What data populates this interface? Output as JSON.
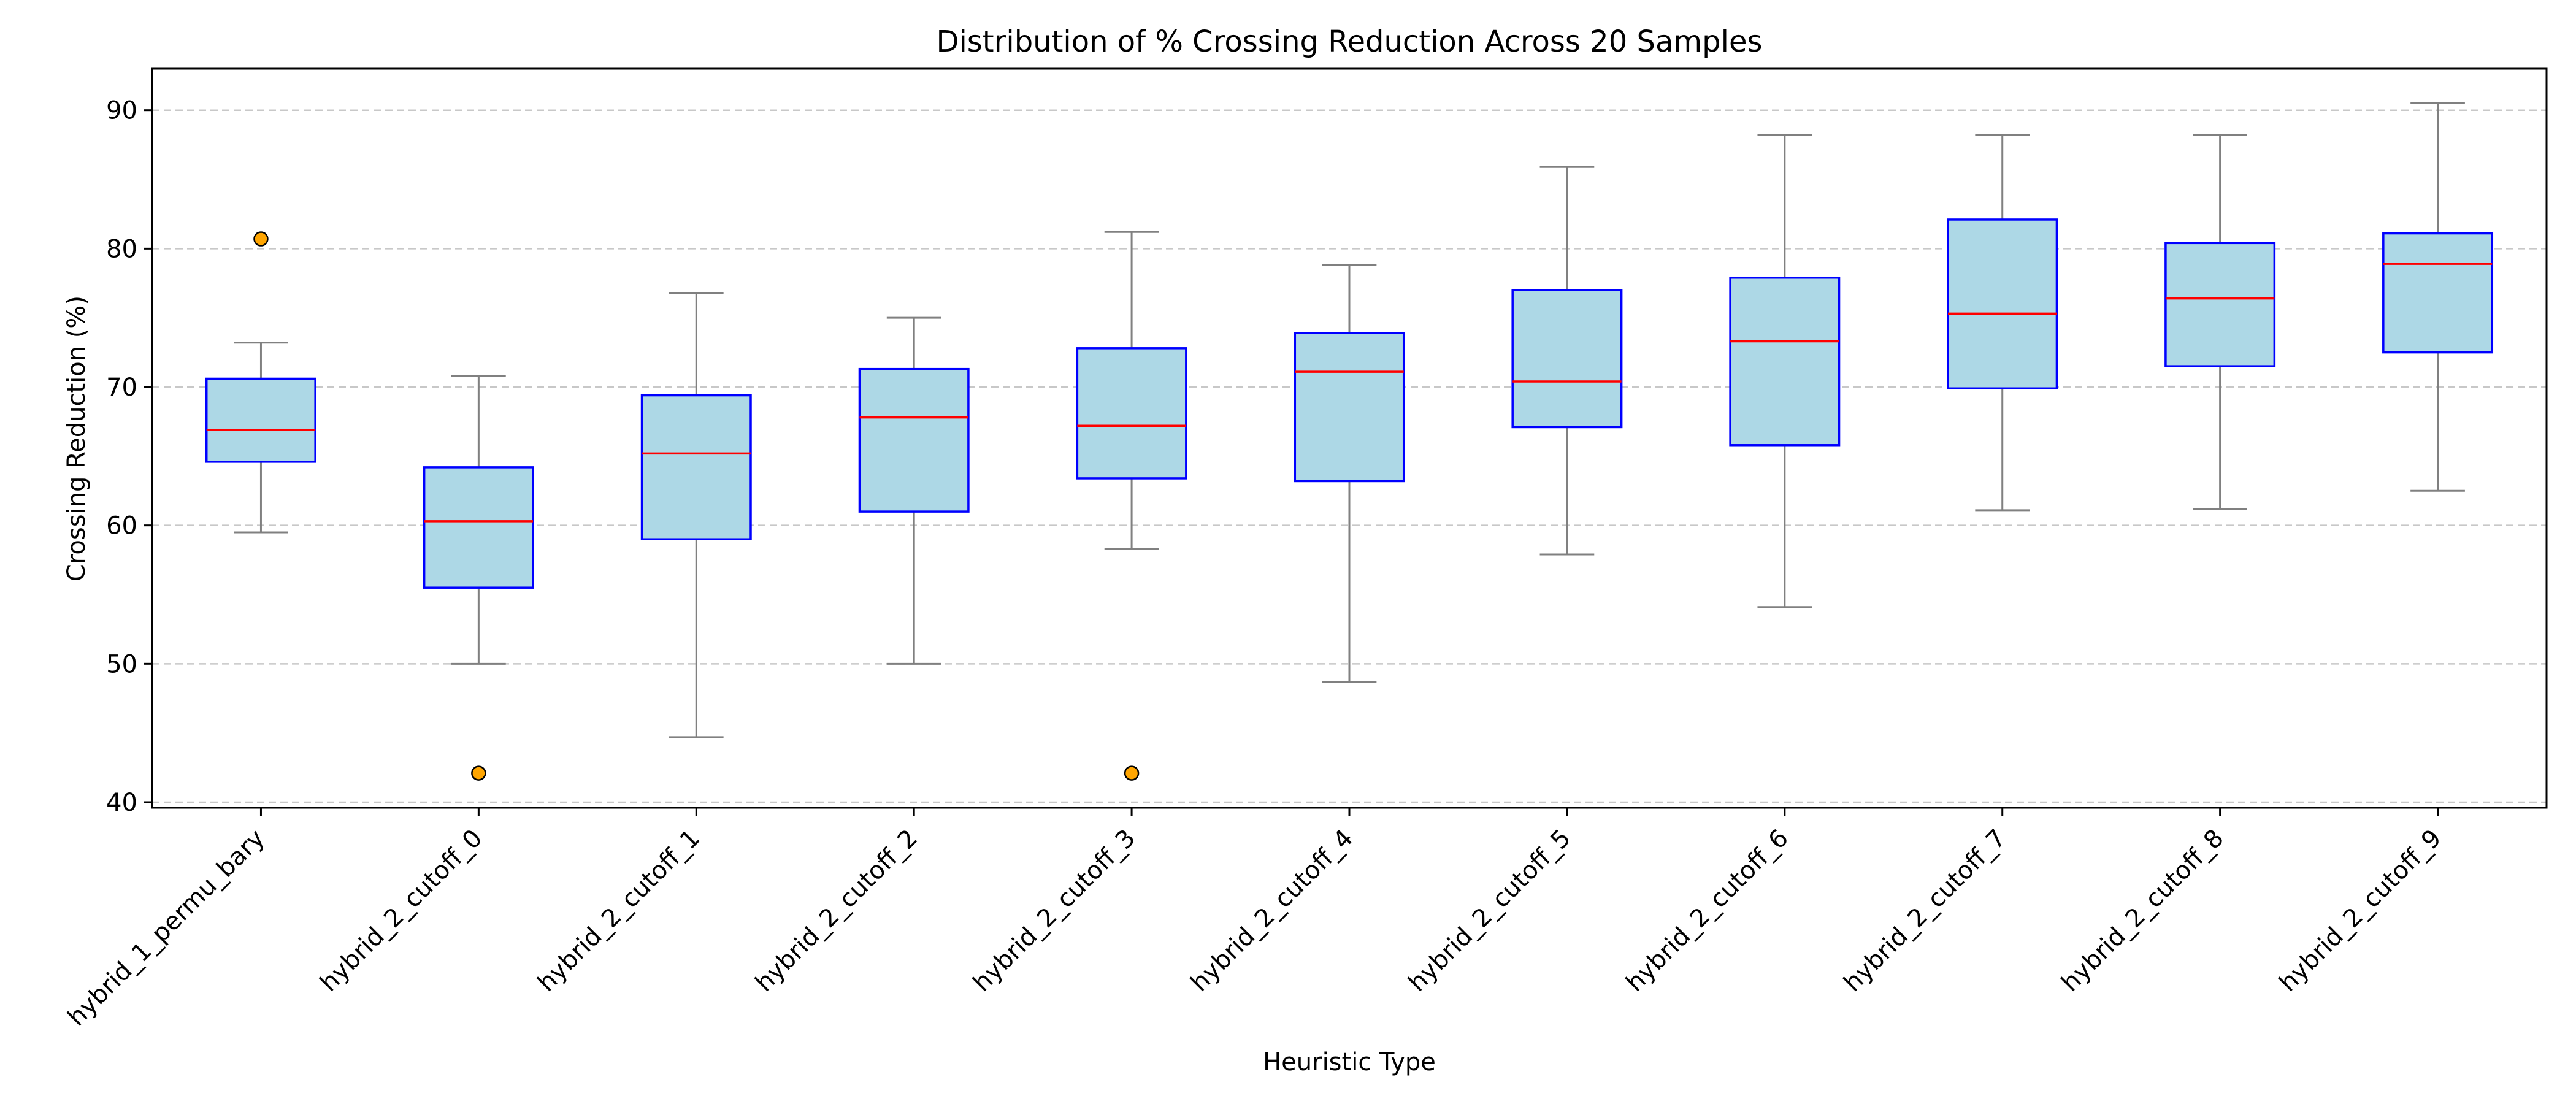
{
  "chart_data": {
    "type": "box",
    "title": "Distribution of % Crossing Reduction Across 20 Samples",
    "xlabel": "Heuristic Type",
    "ylabel": "Crossing Reduction (%)",
    "ylim": [
      39.6,
      93
    ],
    "yticks": [
      40,
      50,
      60,
      70,
      80,
      90
    ],
    "grid": "y-dashed",
    "colors": {
      "box_fill": "#add8e6",
      "box_edge": "#0000ff",
      "median": "#ff0000",
      "whisker": "#808080",
      "outlier_fill": "#ffa500",
      "outlier_edge": "#000000",
      "grid": "#c8c8c8"
    },
    "categories": [
      "hybrid_1_permu_bary",
      "hybrid_2_cutoff_0",
      "hybrid_2_cutoff_1",
      "hybrid_2_cutoff_2",
      "hybrid_2_cutoff_3",
      "hybrid_2_cutoff_4",
      "hybrid_2_cutoff_5",
      "hybrid_2_cutoff_6",
      "hybrid_2_cutoff_7",
      "hybrid_2_cutoff_8",
      "hybrid_2_cutoff_9"
    ],
    "boxes": [
      {
        "whisker_low": 59.5,
        "q1": 64.6,
        "median": 66.9,
        "q3": 70.6,
        "whisker_high": 73.2,
        "outliers": [
          80.7
        ]
      },
      {
        "whisker_low": 50.0,
        "q1": 55.5,
        "median": 60.3,
        "q3": 64.2,
        "whisker_high": 70.8,
        "outliers": [
          42.1
        ]
      },
      {
        "whisker_low": 44.7,
        "q1": 59.0,
        "median": 65.2,
        "q3": 69.4,
        "whisker_high": 76.8,
        "outliers": []
      },
      {
        "whisker_low": 50.0,
        "q1": 61.0,
        "median": 67.8,
        "q3": 71.3,
        "whisker_high": 75.0,
        "outliers": []
      },
      {
        "whisker_low": 58.3,
        "q1": 63.4,
        "median": 67.2,
        "q3": 72.8,
        "whisker_high": 81.2,
        "outliers": [
          42.1
        ]
      },
      {
        "whisker_low": 48.7,
        "q1": 63.2,
        "median": 71.1,
        "q3": 73.9,
        "whisker_high": 78.8,
        "outliers": []
      },
      {
        "whisker_low": 57.9,
        "q1": 67.1,
        "median": 70.4,
        "q3": 77.0,
        "whisker_high": 85.9,
        "outliers": []
      },
      {
        "whisker_low": 54.1,
        "q1": 65.8,
        "median": 73.3,
        "q3": 77.9,
        "whisker_high": 88.2,
        "outliers": []
      },
      {
        "whisker_low": 61.1,
        "q1": 69.9,
        "median": 75.3,
        "q3": 82.1,
        "whisker_high": 88.2,
        "outliers": []
      },
      {
        "whisker_low": 61.2,
        "q1": 71.5,
        "median": 76.4,
        "q3": 80.4,
        "whisker_high": 88.2,
        "outliers": []
      },
      {
        "whisker_low": 62.5,
        "q1": 72.5,
        "median": 78.9,
        "q3": 81.1,
        "whisker_high": 90.5,
        "outliers": []
      }
    ]
  }
}
